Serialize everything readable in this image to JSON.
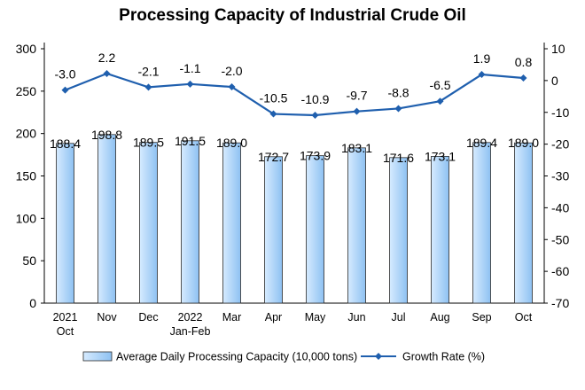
{
  "chart_data": {
    "type": "bar+line",
    "title": "Processing Capacity of Industrial Crude Oil",
    "categories": [
      [
        "2021",
        "Oct"
      ],
      [
        "Nov"
      ],
      [
        "Dec"
      ],
      [
        "2022",
        "Jan-Feb"
      ],
      [
        "Mar"
      ],
      [
        "Apr"
      ],
      [
        "May"
      ],
      [
        "Jun"
      ],
      [
        "Jul"
      ],
      [
        "Aug"
      ],
      [
        "Sep"
      ],
      [
        "Oct"
      ]
    ],
    "series": [
      {
        "name": "Average Daily Processing Capacity (10,000 tons)",
        "type": "bar",
        "axis": "left",
        "values": [
          188.4,
          198.8,
          189.5,
          191.5,
          189.0,
          172.7,
          173.9,
          183.1,
          171.6,
          173.1,
          189.4,
          189.0
        ],
        "labels": [
          "188.4",
          "198.8",
          "189.5",
          "191.5",
          "189.0",
          "172.7",
          "173.9",
          "183.1",
          "171.6",
          "173.1",
          "189.4",
          "189.0"
        ]
      },
      {
        "name": "Growth Rate (%)",
        "type": "line",
        "axis": "right",
        "values": [
          -3.0,
          2.2,
          -2.1,
          -1.1,
          -2.0,
          -10.5,
          -10.9,
          -9.7,
          -8.8,
          -6.5,
          1.9,
          0.8
        ],
        "labels": [
          "-3.0",
          "2.2",
          "-2.1",
          "-1.1",
          "-2.0",
          "-10.5",
          "-10.9",
          "-9.7",
          "-8.8",
          "-6.5",
          "1.9",
          "0.8"
        ]
      }
    ],
    "y_left": {
      "lim": [
        0,
        300
      ],
      "ticks": [
        "0",
        "50",
        "100",
        "150",
        "200",
        "250",
        "300"
      ]
    },
    "y_right": {
      "lim": [
        -70,
        10
      ],
      "ticks": [
        "-70",
        "-60",
        "-50",
        "-40",
        "-30",
        "-20",
        "-10",
        "0",
        "10"
      ]
    },
    "grid": false,
    "legend_position": "bottom",
    "colors": {
      "bar_fill_light": "#d6ebff",
      "bar_fill_dark": "#8ec1f2",
      "bar_stroke": "#2a2a2a",
      "line": "#1f5fae"
    }
  }
}
